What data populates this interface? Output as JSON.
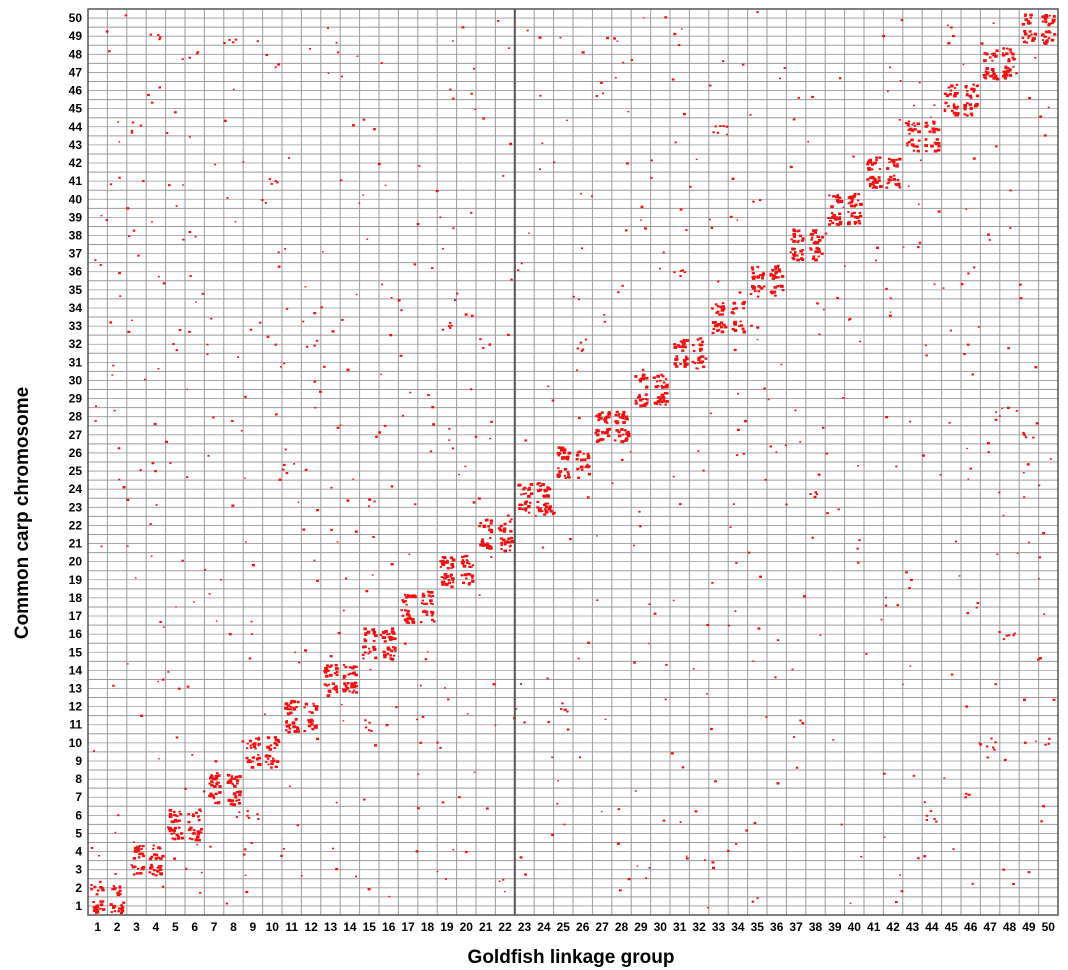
{
  "chart_data": {
    "type": "scatter",
    "title": "",
    "xlabel": "Goldfish linkage group",
    "ylabel": "Common carp chromosome",
    "x_categories": [
      "1",
      "2",
      "3",
      "4",
      "5",
      "6",
      "7",
      "8",
      "9",
      "10",
      "11",
      "12",
      "13",
      "14",
      "15",
      "16",
      "17",
      "18",
      "19",
      "20",
      "21",
      "22",
      "23",
      "24",
      "25",
      "26",
      "27",
      "28",
      "29",
      "30",
      "31",
      "32",
      "33",
      "34",
      "35",
      "36",
      "37",
      "38",
      "39",
      "40",
      "41",
      "42",
      "43",
      "44",
      "45",
      "46",
      "47",
      "48",
      "49",
      "50"
    ],
    "y_categories": [
      "1",
      "2",
      "3",
      "4",
      "5",
      "6",
      "7",
      "8",
      "9",
      "10",
      "11",
      "12",
      "13",
      "14",
      "15",
      "16",
      "17",
      "18",
      "19",
      "20",
      "21",
      "22",
      "23",
      "24",
      "25",
      "26",
      "27",
      "28",
      "29",
      "30",
      "31",
      "32",
      "33",
      "34",
      "35",
      "36",
      "37",
      "38",
      "39",
      "40",
      "41",
      "42",
      "43",
      "44",
      "45",
      "46",
      "47",
      "48",
      "49",
      "50"
    ],
    "grid": true,
    "grid_rows_per_category": 2,
    "marker_color": "#ee1111",
    "grid_color": "#9a9a9a",
    "frame_color": "#555555",
    "diagonal_clusters": [
      {
        "x": 1,
        "y": 1
      },
      {
        "x": 1,
        "y": 2
      },
      {
        "x": 2,
        "y": 1
      },
      {
        "x": 2,
        "y": 2
      },
      {
        "x": 3,
        "y": 3
      },
      {
        "x": 3,
        "y": 4
      },
      {
        "x": 4,
        "y": 3
      },
      {
        "x": 4,
        "y": 4
      },
      {
        "x": 5,
        "y": 5
      },
      {
        "x": 5,
        "y": 6
      },
      {
        "x": 6,
        "y": 5
      },
      {
        "x": 6,
        "y": 6
      },
      {
        "x": 7,
        "y": 7
      },
      {
        "x": 7,
        "y": 8
      },
      {
        "x": 8,
        "y": 7
      },
      {
        "x": 8,
        "y": 8
      },
      {
        "x": 9,
        "y": 9
      },
      {
        "x": 9,
        "y": 10
      },
      {
        "x": 10,
        "y": 9
      },
      {
        "x": 10,
        "y": 10
      },
      {
        "x": 11,
        "y": 11
      },
      {
        "x": 11,
        "y": 12
      },
      {
        "x": 12,
        "y": 11
      },
      {
        "x": 12,
        "y": 12
      },
      {
        "x": 13,
        "y": 13
      },
      {
        "x": 13,
        "y": 14
      },
      {
        "x": 14,
        "y": 13
      },
      {
        "x": 14,
        "y": 14
      },
      {
        "x": 15,
        "y": 15
      },
      {
        "x": 15,
        "y": 16
      },
      {
        "x": 16,
        "y": 15
      },
      {
        "x": 16,
        "y": 16
      },
      {
        "x": 17,
        "y": 17
      },
      {
        "x": 17,
        "y": 18
      },
      {
        "x": 18,
        "y": 17
      },
      {
        "x": 18,
        "y": 18
      },
      {
        "x": 19,
        "y": 19
      },
      {
        "x": 19,
        "y": 20
      },
      {
        "x": 20,
        "y": 19
      },
      {
        "x": 20,
        "y": 20
      },
      {
        "x": 21,
        "y": 21
      },
      {
        "x": 21,
        "y": 22
      },
      {
        "x": 22,
        "y": 21
      },
      {
        "x": 22,
        "y": 22
      },
      {
        "x": 23,
        "y": 23
      },
      {
        "x": 23,
        "y": 24
      },
      {
        "x": 24,
        "y": 23
      },
      {
        "x": 24,
        "y": 24
      },
      {
        "x": 25,
        "y": 25
      },
      {
        "x": 25,
        "y": 26
      },
      {
        "x": 26,
        "y": 25
      },
      {
        "x": 26,
        "y": 26
      },
      {
        "x": 27,
        "y": 27
      },
      {
        "x": 27,
        "y": 28
      },
      {
        "x": 28,
        "y": 27
      },
      {
        "x": 28,
        "y": 28
      },
      {
        "x": 29,
        "y": 29
      },
      {
        "x": 29,
        "y": 30
      },
      {
        "x": 30,
        "y": 29
      },
      {
        "x": 30,
        "y": 30
      },
      {
        "x": 31,
        "y": 31
      },
      {
        "x": 31,
        "y": 32
      },
      {
        "x": 32,
        "y": 31
      },
      {
        "x": 32,
        "y": 32
      },
      {
        "x": 33,
        "y": 33
      },
      {
        "x": 33,
        "y": 34
      },
      {
        "x": 34,
        "y": 33
      },
      {
        "x": 34,
        "y": 34
      },
      {
        "x": 35,
        "y": 35
      },
      {
        "x": 35,
        "y": 36
      },
      {
        "x": 36,
        "y": 35
      },
      {
        "x": 36,
        "y": 36
      },
      {
        "x": 37,
        "y": 37
      },
      {
        "x": 37,
        "y": 38
      },
      {
        "x": 38,
        "y": 37
      },
      {
        "x": 38,
        "y": 38
      },
      {
        "x": 39,
        "y": 39
      },
      {
        "x": 39,
        "y": 40
      },
      {
        "x": 40,
        "y": 39
      },
      {
        "x": 40,
        "y": 40
      },
      {
        "x": 41,
        "y": 41
      },
      {
        "x": 41,
        "y": 42
      },
      {
        "x": 42,
        "y": 41
      },
      {
        "x": 42,
        "y": 42
      },
      {
        "x": 43,
        "y": 43
      },
      {
        "x": 43,
        "y": 44
      },
      {
        "x": 44,
        "y": 43
      },
      {
        "x": 44,
        "y": 44
      },
      {
        "x": 45,
        "y": 45
      },
      {
        "x": 45,
        "y": 46
      },
      {
        "x": 46,
        "y": 45
      },
      {
        "x": 46,
        "y": 46
      },
      {
        "x": 47,
        "y": 47
      },
      {
        "x": 47,
        "y": 48
      },
      {
        "x": 48,
        "y": 47
      },
      {
        "x": 48,
        "y": 48
      },
      {
        "x": 49,
        "y": 49
      },
      {
        "x": 49,
        "y": 50
      },
      {
        "x": 50,
        "y": 49
      },
      {
        "x": 50,
        "y": 50
      }
    ],
    "notable_off_diagonal": [
      {
        "x": 9,
        "y": 6
      },
      {
        "x": 10,
        "y": 41
      },
      {
        "x": 25,
        "y": 12
      },
      {
        "x": 28,
        "y": 35
      },
      {
        "x": 34,
        "y": 26
      },
      {
        "x": 48,
        "y": 16
      },
      {
        "x": 47,
        "y": 10
      },
      {
        "x": 50,
        "y": 10
      },
      {
        "x": 46,
        "y": 36
      },
      {
        "x": 15,
        "y": 11
      },
      {
        "x": 19,
        "y": 33
      },
      {
        "x": 6,
        "y": 48
      },
      {
        "x": 4,
        "y": 49
      },
      {
        "x": 3,
        "y": 44
      },
      {
        "x": 5,
        "y": 32
      },
      {
        "x": 18,
        "y": 18
      },
      {
        "x": 21,
        "y": 32
      },
      {
        "x": 26,
        "y": 32
      },
      {
        "x": 44,
        "y": 6
      },
      {
        "x": 46,
        "y": 7
      },
      {
        "x": 33,
        "y": 44
      },
      {
        "x": 35,
        "y": 40
      },
      {
        "x": 38,
        "y": 24
      },
      {
        "x": 31,
        "y": 36
      },
      {
        "x": 8,
        "y": 49
      },
      {
        "x": 12,
        "y": 32
      },
      {
        "x": 49,
        "y": 27
      },
      {
        "x": 40,
        "y": 21
      }
    ]
  }
}
